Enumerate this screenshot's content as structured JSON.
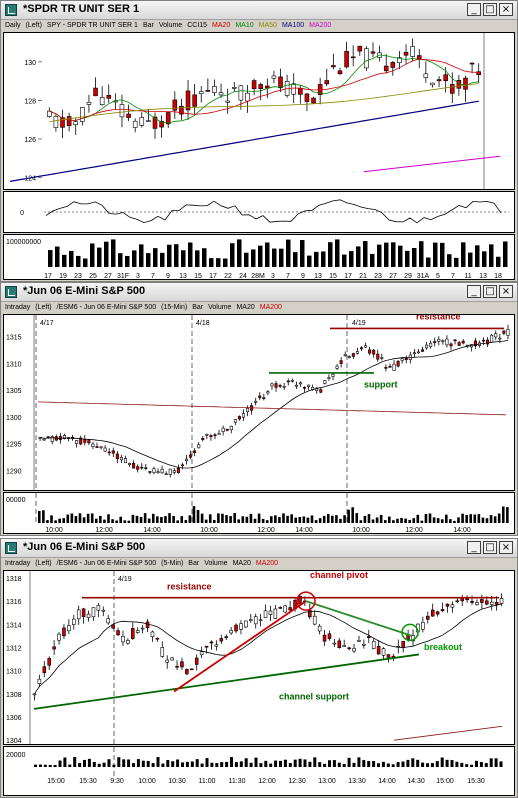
{
  "windows": [
    {
      "title": "*SPDR TR UNIT SER 1",
      "header": [
        "Daily",
        "(Left)",
        "SPY - SPDR TR UNIT SER 1",
        "Bar",
        "Volume",
        "CCI15",
        "MA20",
        "MA10",
        "MA50",
        "MA100",
        "MA200"
      ],
      "header_colors": [
        "#000",
        "#000",
        "#000",
        "#000",
        "#000",
        "#000",
        "#cc0000",
        "#008800",
        "#888800",
        "#000080",
        "#cc00cc"
      ],
      "y_labels": [
        "130",
        "128",
        "126",
        "124"
      ],
      "cci_label": "0",
      "vol_label": "100000000",
      "x_labels": [
        "17",
        "19",
        "23",
        "25",
        "27",
        "31F",
        "3",
        "7",
        "9",
        "13",
        "15",
        "17",
        "22",
        "24",
        "28M",
        "3",
        "7",
        "9",
        "13",
        "15",
        "17",
        "21",
        "23",
        "27",
        "29",
        "31A",
        "5",
        "7",
        "11",
        "13",
        "18"
      ]
    },
    {
      "title": "*Jun 06  E-Mini S&P 500",
      "header": [
        "Intraday",
        "(Left)",
        "/ESM6 - Jun 06  E-Mini S&P 500",
        "(15-Min)",
        "Bar",
        "Volume",
        "MA20",
        "MA200"
      ],
      "header_colors": [
        "#000",
        "#000",
        "#000",
        "#000",
        "#000",
        "#000",
        "#000",
        "#cc0000"
      ],
      "date_labels": [
        "4/17",
        "4/18",
        "4/19"
      ],
      "y_labels": [
        "1315",
        "1310",
        "1305",
        "1300",
        "1295",
        "1290"
      ],
      "vol_label": "00000",
      "x_labels": [
        "10:00",
        "12:00",
        "14:00",
        "10:00",
        "12:00",
        "14:00",
        "10:00",
        "12:00",
        "14:00"
      ],
      "annotations": {
        "resistance": "resistance",
        "support": "support"
      }
    },
    {
      "title": "*Jun 06  E-Mini S&P 500",
      "header": [
        "Intraday",
        "(Left)",
        "/ESM6 - Jun 06  E-Mini S&P 500",
        "(5-Min)",
        "Bar",
        "Volume",
        "MA20",
        "MA200"
      ],
      "header_colors": [
        "#000",
        "#000",
        "#000",
        "#000",
        "#000",
        "#000",
        "#000",
        "#cc0000"
      ],
      "date_labels": [
        "4/19"
      ],
      "y_labels": [
        "1318",
        "1316",
        "1314",
        "1312",
        "1310",
        "1308",
        "1306",
        "1304"
      ],
      "vol_label": "20000",
      "x_labels": [
        "15:00",
        "15:30",
        "9:30",
        "10:00",
        "10:30",
        "11:00",
        "11:30",
        "12:00",
        "12:30",
        "13:00",
        "13:30",
        "14:00",
        "14:30",
        "15:00",
        "15:30"
      ],
      "annotations": {
        "resistance": "resistance",
        "channel_pivot": "channel pivot",
        "breakout": "breakout",
        "channel_support": "channel support"
      }
    }
  ],
  "colors": {
    "up": "#ffffff",
    "down": "#cc0000",
    "ma20": "#000000",
    "ma200": "#8b1a1a",
    "resistance": "#990000",
    "support": "#006600",
    "pivot": "#cc0000",
    "breakout": "#009900"
  }
}
